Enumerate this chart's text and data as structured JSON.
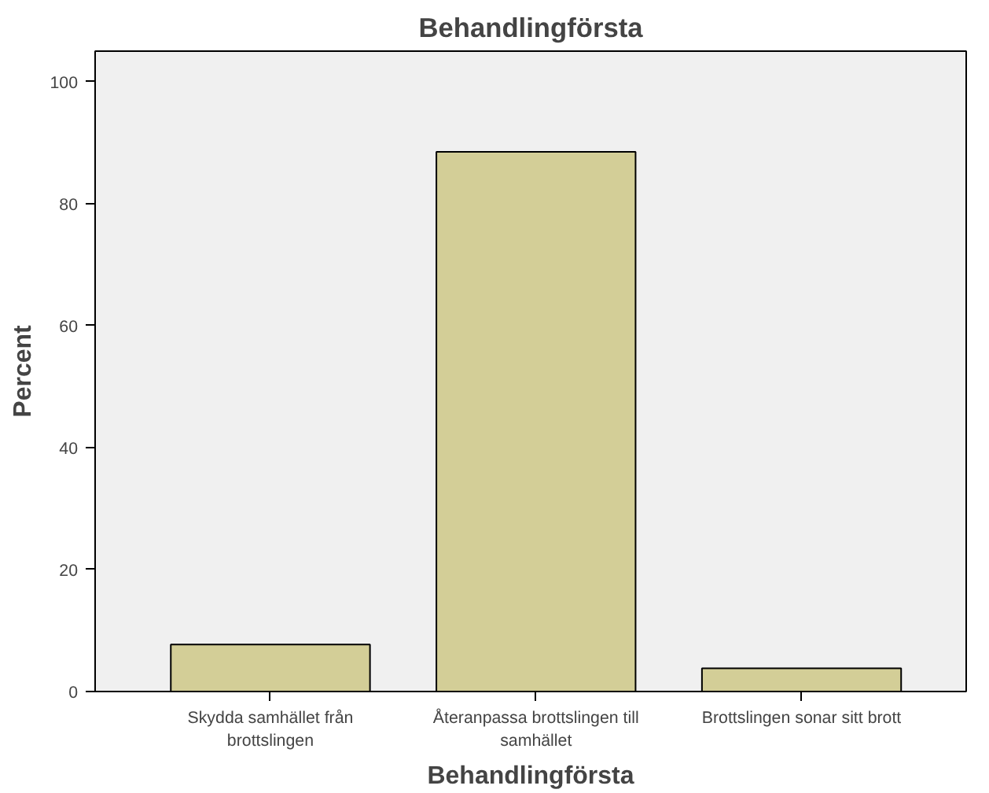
{
  "chart_data": {
    "type": "bar",
    "title": "Behandlingförsta",
    "xlabel": "Behandlingförsta",
    "ylabel": "Percent",
    "categories": [
      "Skydda samhället från brottslingen",
      "Återanpassa brottslingen till samhället",
      "Brottslingen sonar sitt brott"
    ],
    "values": [
      7.7,
      88.5,
      3.8
    ],
    "color": "#d3ce97",
    "ylim": [
      0,
      105
    ],
    "yticks": [
      0,
      20,
      40,
      60,
      80,
      100
    ],
    "grid": false
  }
}
